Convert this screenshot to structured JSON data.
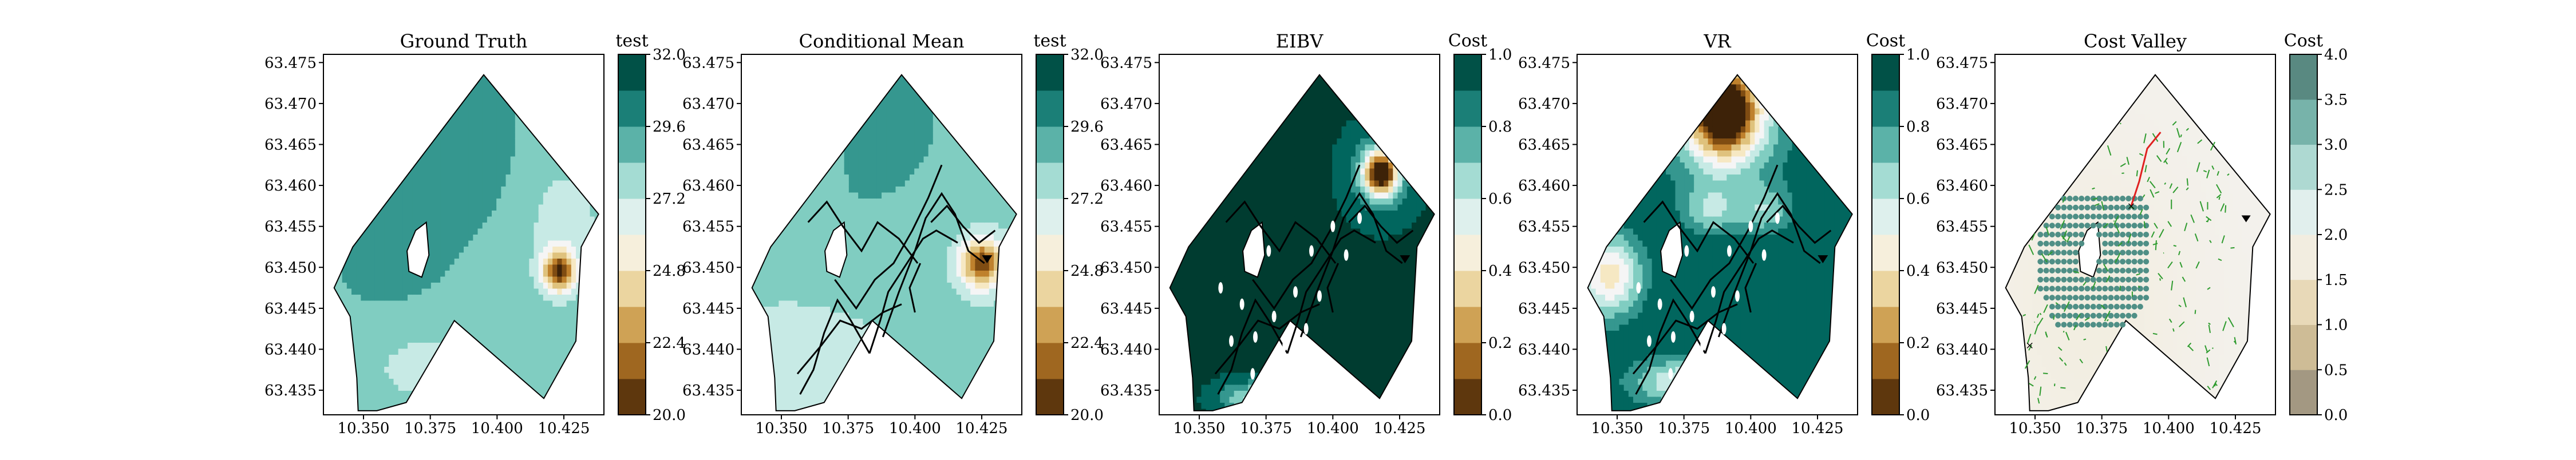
{
  "chart_data": [
    {
      "type": "heatmap",
      "title": "Ground Truth",
      "colorbar_label": "test",
      "colorbar_ticks": [
        "20.0",
        "22.4",
        "24.8",
        "27.2",
        "29.6",
        "32.0"
      ],
      "clim": [
        20.0,
        32.0
      ],
      "palette": "brbg",
      "x_ticks": [
        "10.350",
        "10.375",
        "10.400",
        "10.425"
      ],
      "y_ticks": [
        "63.435",
        "63.440",
        "63.445",
        "63.450",
        "63.455",
        "63.460",
        "63.465",
        "63.470",
        "63.475"
      ],
      "xlim": [
        10.335,
        10.44
      ],
      "ylim": [
        63.432,
        63.476
      ],
      "overlay": "none"
    },
    {
      "type": "heatmap",
      "title": "Conditional Mean",
      "colorbar_label": "test",
      "colorbar_ticks": [
        "20.0",
        "22.4",
        "24.8",
        "27.2",
        "29.6",
        "32.0"
      ],
      "clim": [
        20.0,
        32.0
      ],
      "palette": "brbg",
      "x_ticks": [
        "10.350",
        "10.375",
        "10.400",
        "10.425"
      ],
      "y_ticks": [
        "63.435",
        "63.440",
        "63.445",
        "63.450",
        "63.455",
        "63.460",
        "63.465",
        "63.470",
        "63.475"
      ],
      "xlim": [
        10.335,
        10.44
      ],
      "ylim": [
        63.432,
        63.476
      ],
      "overlay": "path"
    },
    {
      "type": "heatmap",
      "title": "EIBV",
      "colorbar_label": "Cost",
      "colorbar_ticks": [
        "0.0",
        "0.2",
        "0.4",
        "0.6",
        "0.8",
        "1.0"
      ],
      "clim": [
        0.0,
        1.0
      ],
      "palette": "brbg",
      "x_ticks": [
        "10.350",
        "10.375",
        "10.400",
        "10.425"
      ],
      "y_ticks": [
        "63.435",
        "63.440",
        "63.445",
        "63.450",
        "63.455",
        "63.460",
        "63.465",
        "63.470",
        "63.475"
      ],
      "xlim": [
        10.335,
        10.44
      ],
      "ylim": [
        63.432,
        63.476
      ],
      "overlay": "path"
    },
    {
      "type": "heatmap",
      "title": "VR",
      "colorbar_label": "Cost",
      "colorbar_ticks": [
        "0.0",
        "0.2",
        "0.4",
        "0.6",
        "0.8",
        "1.0"
      ],
      "clim": [
        0.0,
        1.0
      ],
      "palette": "brbg",
      "x_ticks": [
        "10.350",
        "10.375",
        "10.400",
        "10.425"
      ],
      "y_ticks": [
        "63.435",
        "63.440",
        "63.445",
        "63.450",
        "63.455",
        "63.460",
        "63.465",
        "63.470",
        "63.475"
      ],
      "xlim": [
        10.335,
        10.44
      ],
      "ylim": [
        63.432,
        63.476
      ],
      "overlay": "path"
    },
    {
      "type": "heatmap",
      "title": "Cost Valley",
      "colorbar_label": "Cost",
      "colorbar_ticks": [
        "0.0",
        "0.5",
        "1.0",
        "1.5",
        "2.0",
        "2.5",
        "3.0",
        "3.5",
        "4.0"
      ],
      "clim": [
        0.0,
        4.0
      ],
      "palette": "brbg_faded",
      "x_ticks": [
        "10.350",
        "10.375",
        "10.400",
        "10.425"
      ],
      "y_ticks": [
        "63.435",
        "63.440",
        "63.445",
        "63.450",
        "63.455",
        "63.460",
        "63.465",
        "63.470",
        "63.475"
      ],
      "xlim": [
        10.335,
        10.44
      ],
      "ylim": [
        63.432,
        63.476
      ],
      "overlay": "tree"
    }
  ]
}
